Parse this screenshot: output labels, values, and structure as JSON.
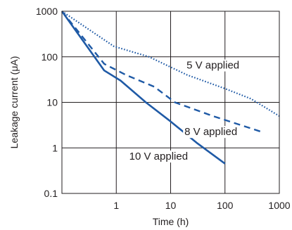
{
  "chart_data": {
    "type": "line",
    "title": "",
    "xlabel": "Time (h)",
    "ylabel": "Leakage current (μA)",
    "x_scale": "log",
    "y_scale": "log",
    "xlim": [
      0.1,
      1000
    ],
    "ylim": [
      0.1,
      1000
    ],
    "x_ticks": [
      {
        "value": 1,
        "label": "1"
      },
      {
        "value": 10,
        "label": "10"
      },
      {
        "value": 100,
        "label": "100"
      },
      {
        "value": 1000,
        "label": "1000"
      }
    ],
    "y_ticks": [
      {
        "value": 1000,
        "label": "1000"
      },
      {
        "value": 100,
        "label": "100"
      },
      {
        "value": 10,
        "label": "10"
      },
      {
        "value": 1,
        "label": "1"
      },
      {
        "value": 0.1,
        "label": "0.1"
      }
    ],
    "grid": true,
    "legend": "none",
    "series": [
      {
        "name": "5 V applied",
        "style": "dotted",
        "color": "#1f5aa6",
        "x": [
          0.1,
          0.9,
          4,
          20,
          100,
          300,
          1000
        ],
        "y": [
          1000,
          170,
          100,
          40,
          20,
          12,
          5
        ]
      },
      {
        "name": "8 V applied",
        "style": "dashed",
        "color": "#1f5aa6",
        "x": [
          0.1,
          0.6,
          1.5,
          5,
          12,
          60,
          500
        ],
        "y": [
          1000,
          70,
          40,
          22,
          10,
          5,
          2.2
        ]
      },
      {
        "name": "10 V applied",
        "style": "solid",
        "color": "#1f5aa6",
        "x": [
          0.1,
          0.6,
          1.2,
          3.5,
          10,
          30,
          100
        ],
        "y": [
          1000,
          50,
          30,
          10,
          3.8,
          1.3,
          0.45
        ]
      }
    ],
    "annotations": [
      {
        "text": "5 V applied",
        "series": 0,
        "x": 60,
        "y": 55
      },
      {
        "text": "8 V applied",
        "series": 1,
        "x": 55,
        "y": 1.9
      },
      {
        "text": "10 V applied",
        "series": 2,
        "x": 6,
        "y": 0.55
      }
    ]
  }
}
